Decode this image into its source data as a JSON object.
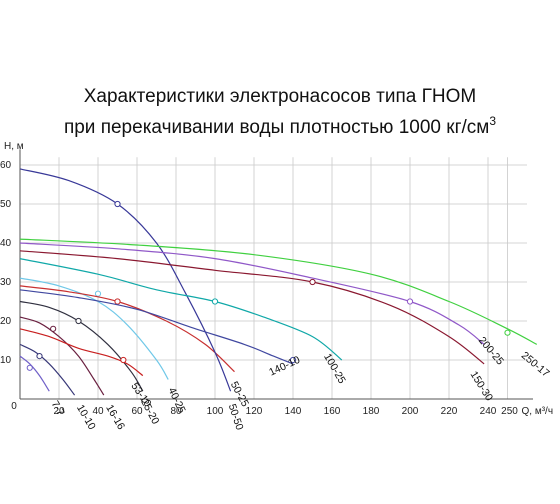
{
  "chart": {
    "title_line1": "Характеристики электронасосов типа ГНОМ",
    "title_line2": "при перекачивании воды плотностью 1000 кг/см",
    "title_sup": "3"
  },
  "chart_data": {
    "type": "line",
    "title": "Характеристики электронасосов типа ГНОМ при перекачивании воды плотностью 1000 кг/см3",
    "xlabel": "Q, м³/ч",
    "ylabel": "Н, м",
    "xlim": [
      0,
      260
    ],
    "ylim": [
      0,
      62
    ],
    "x_ticks": [
      "0",
      "20",
      "40",
      "60",
      "80",
      "100",
      "120",
      "140",
      "160",
      "180",
      "200",
      "220",
      "240",
      "250"
    ],
    "x_tick_values": [
      0,
      20,
      40,
      60,
      80,
      100,
      120,
      140,
      160,
      180,
      200,
      220,
      240,
      250
    ],
    "y_ticks": [
      "10",
      "20",
      "30",
      "40",
      "50",
      "60"
    ],
    "y_tick_values": [
      10,
      20,
      30,
      40,
      50,
      60
    ],
    "grid": true,
    "series": [
      {
        "name": "7-7",
        "color": "#7060c8",
        "points": [
          [
            0,
            11
          ],
          [
            5,
            9
          ],
          [
            10,
            6
          ],
          [
            15,
            2
          ]
        ],
        "marker": [
          5,
          8
        ]
      },
      {
        "name": "10-10",
        "color": "#383878",
        "points": [
          [
            0,
            14
          ],
          [
            8,
            12
          ],
          [
            15,
            9
          ],
          [
            22,
            5
          ],
          [
            28,
            1
          ]
        ],
        "marker": [
          10,
          11
        ]
      },
      {
        "name": "16-16",
        "color": "#6a2040",
        "points": [
          [
            0,
            21
          ],
          [
            10,
            19.5
          ],
          [
            20,
            16
          ],
          [
            30,
            11
          ],
          [
            38,
            5
          ],
          [
            43,
            1
          ]
        ],
        "marker": [
          17,
          18
        ]
      },
      {
        "name": "25-20",
        "color": "#303040",
        "points": [
          [
            0,
            25
          ],
          [
            15,
            23.5
          ],
          [
            30,
            20
          ],
          [
            45,
            14
          ],
          [
            57,
            7
          ],
          [
            63,
            2
          ]
        ],
        "marker": [
          30,
          20
        ]
      },
      {
        "name": "40-25",
        "color": "#70c8e8",
        "points": [
          [
            0,
            31
          ],
          [
            20,
            29
          ],
          [
            40,
            25
          ],
          [
            55,
            19
          ],
          [
            70,
            10
          ],
          [
            76,
            5
          ]
        ],
        "marker": [
          40,
          27
        ]
      },
      {
        "name": "53-10",
        "color": "#c82020",
        "points": [
          [
            0,
            18
          ],
          [
            15,
            16
          ],
          [
            30,
            13
          ],
          [
            45,
            11
          ],
          [
            55,
            9
          ],
          [
            63,
            6
          ]
        ],
        "marker": [
          53,
          10
        ]
      },
      {
        "name": "50-25",
        "color": "#c83030",
        "points": [
          [
            0,
            29
          ],
          [
            25,
            27.5
          ],
          [
            50,
            25
          ],
          [
            75,
            20
          ],
          [
            95,
            14
          ],
          [
            110,
            7
          ]
        ],
        "marker": [
          50,
          25
        ]
      },
      {
        "name": "50-50",
        "color": "#383898",
        "points": [
          [
            0,
            59
          ],
          [
            25,
            56
          ],
          [
            50,
            50
          ],
          [
            70,
            40
          ],
          [
            85,
            27
          ],
          [
            100,
            12
          ],
          [
            108,
            2
          ]
        ],
        "marker": [
          50,
          50
        ]
      },
      {
        "name": "140-10",
        "color": "#4048a0",
        "points": [
          [
            0,
            28
          ],
          [
            30,
            26
          ],
          [
            60,
            23
          ],
          [
            90,
            18
          ],
          [
            115,
            14
          ],
          [
            130,
            11
          ],
          [
            140,
            9
          ]
        ],
        "marker": [
          140,
          10
        ]
      },
      {
        "name": "100-25",
        "color": "#10a8a8",
        "points": [
          [
            0,
            36
          ],
          [
            40,
            32
          ],
          [
            70,
            28
          ],
          [
            100,
            25
          ],
          [
            125,
            21
          ],
          [
            150,
            16
          ],
          [
            165,
            10
          ]
        ],
        "marker": [
          100,
          25
        ]
      },
      {
        "name": "150-30",
        "color": "#8a1830",
        "points": [
          [
            0,
            38
          ],
          [
            50,
            36
          ],
          [
            100,
            33
          ],
          [
            150,
            30
          ],
          [
            190,
            24
          ],
          [
            220,
            16
          ],
          [
            238,
            9
          ]
        ],
        "marker": [
          150,
          30
        ]
      },
      {
        "name": "200-25",
        "color": "#9058c8",
        "points": [
          [
            0,
            40
          ],
          [
            50,
            38.5
          ],
          [
            100,
            36
          ],
          [
            150,
            31
          ],
          [
            200,
            25
          ],
          [
            225,
            19
          ],
          [
            238,
            14
          ]
        ],
        "marker": [
          200,
          25
        ]
      },
      {
        "name": "250-17",
        "color": "#40d040",
        "points": [
          [
            0,
            41
          ],
          [
            60,
            39.5
          ],
          [
            120,
            37
          ],
          [
            180,
            32
          ],
          [
            220,
            25
          ],
          [
            250,
            18
          ],
          [
            265,
            14
          ]
        ],
        "marker": [
          250,
          17
        ]
      }
    ]
  }
}
